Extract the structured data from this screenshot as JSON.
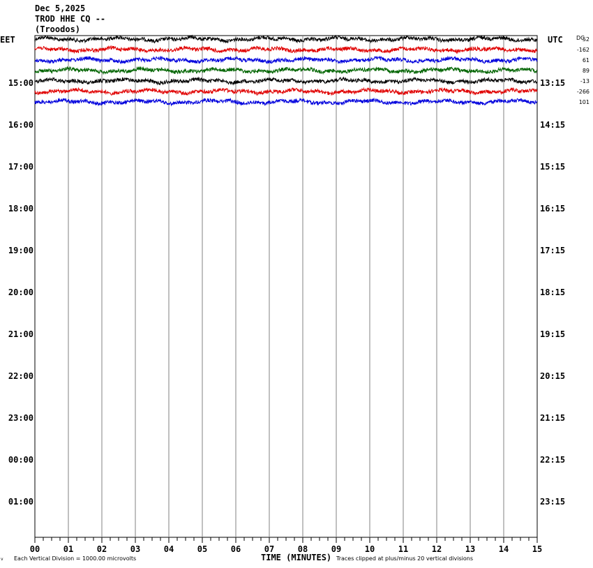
{
  "header": {
    "date": "Dec 5,2025",
    "station": "TROD HHE CQ --",
    "location": "(Troodos)"
  },
  "axes": {
    "left_zone": "EET",
    "right_zone": "UTC",
    "dc_label": "DC",
    "xlabel": "TIME (MINUTES)"
  },
  "footer": {
    "scale_note": "Each Vertical Division = 1000.00 microvolts",
    "clip_note": "Traces clipped at plus/minus 20 vertical divisions",
    "corner_mark": "v"
  },
  "chart_data": {
    "type": "line",
    "xlabel": "TIME (MINUTES)",
    "x_ticks": [
      "00",
      "01",
      "02",
      "03",
      "04",
      "05",
      "06",
      "07",
      "08",
      "09",
      "10",
      "11",
      "12",
      "13",
      "14",
      "15"
    ],
    "xlim": [
      0,
      15
    ],
    "left_time_labels": [
      "15:00",
      "16:00",
      "17:00",
      "18:00",
      "19:00",
      "20:00",
      "21:00",
      "22:00",
      "23:00",
      "00:00",
      "01:00"
    ],
    "right_time_labels": [
      "13:15",
      "14:15",
      "15:15",
      "16:15",
      "17:15",
      "18:15",
      "19:15",
      "20:15",
      "21:15",
      "22:15",
      "23:15"
    ],
    "colors": [
      "#000000",
      "#e00000",
      "#0000dd",
      "#006400"
    ],
    "traces": [
      {
        "dc_offset": "52",
        "color": "#000000"
      },
      {
        "dc_offset": "-162",
        "color": "#e00000"
      },
      {
        "dc_offset": "61",
        "color": "#0000dd"
      },
      {
        "dc_offset": "89",
        "color": "#006400"
      },
      {
        "dc_offset": "-13",
        "color": "#000000"
      },
      {
        "dc_offset": "-266",
        "color": "#e00000"
      },
      {
        "dc_offset": "101",
        "color": "#0000dd"
      }
    ]
  }
}
